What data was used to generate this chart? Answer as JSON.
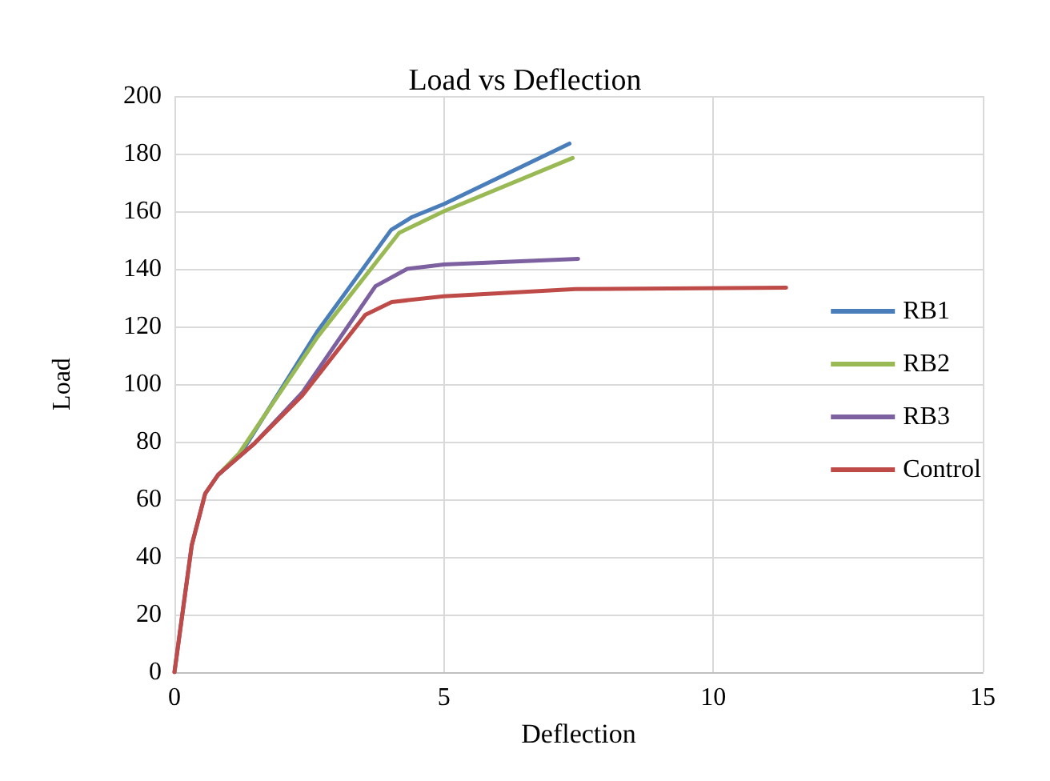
{
  "chart_data": {
    "type": "line",
    "title": "Load vs Deflection",
    "xlabel": "Deflection",
    "ylabel": "Load",
    "xlim": [
      0,
      15
    ],
    "xticks": [
      0,
      5,
      10,
      15
    ],
    "ylim": [
      0,
      200
    ],
    "yticks": [
      0,
      20,
      40,
      60,
      80,
      100,
      120,
      140,
      160,
      180,
      200
    ],
    "grid": true,
    "legend": "right",
    "marker": "none",
    "line_style": "solid",
    "series": [
      {
        "name": "RB1",
        "color": "#4a7ebb",
        "x": [
          0.81,
          1.2,
          2.66,
          4.02,
          4.41,
          5,
          7.33
        ],
        "values": [
          68.5,
          75,
          118.5,
          153.5,
          158,
          162.5,
          183.5
        ]
      },
      {
        "name": "RB2",
        "color": "#98b954",
        "x": [
          0.81,
          1.2,
          2.66,
          4.17,
          5,
          7.39
        ],
        "values": [
          68.5,
          76,
          116.5,
          152.5,
          160,
          178.5
        ]
      },
      {
        "name": "RB3",
        "color": "#7d60a0",
        "x": [
          0,
          0.32,
          0.57,
          0.81,
          1.49,
          2.37,
          3.73,
          4.32,
          5,
          7.49
        ],
        "values": [
          0,
          44,
          62,
          68.5,
          79.5,
          97,
          134,
          140,
          141.5,
          143.5
        ]
      },
      {
        "name": "Control",
        "color": "#be4b48",
        "x": [
          0,
          0.32,
          0.57,
          0.81,
          1.49,
          2.37,
          3.54,
          4.03,
          5,
          7.44,
          11.35
        ],
        "values": [
          0,
          44,
          62,
          68.5,
          79.5,
          96,
          124,
          128.5,
          130.5,
          133,
          133.5
        ]
      }
    ]
  }
}
